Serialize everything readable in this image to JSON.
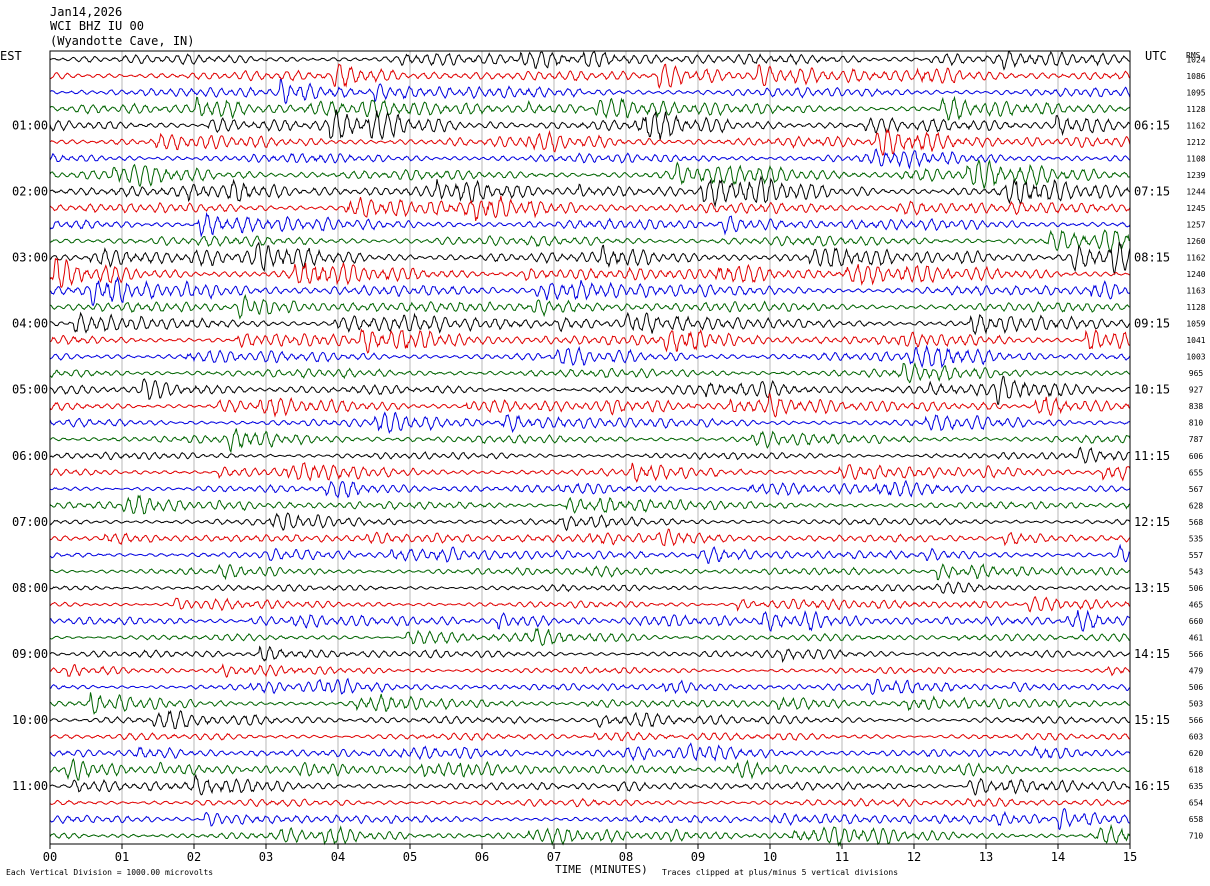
{
  "header": {
    "date": "Jan14,2026",
    "channel": "WCI BHZ IU 00",
    "location": "(Wyandotte Cave, IN)"
  },
  "left_timezone": "EST",
  "right_timezone": "UTC",
  "rms_label": "RMS",
  "footer": {
    "scale_note": "Each Vertical Division = 1000.00 microvolts",
    "clip_note": "Traces clipped at plus/minus 5 vertical divisions"
  },
  "chart_data": {
    "type": "line",
    "title": "",
    "xlabel": "TIME (MINUTES)",
    "ylabel": "",
    "xlim": [
      0,
      15
    ],
    "x_ticks": [
      "00",
      "01",
      "02",
      "03",
      "04",
      "05",
      "06",
      "07",
      "08",
      "09",
      "10",
      "11",
      "12",
      "13",
      "14",
      "15"
    ],
    "left_hour_labels": [
      "01:00",
      "02:00",
      "03:00",
      "04:00",
      "05:00",
      "06:00",
      "07:00",
      "08:00",
      "09:00",
      "10:00",
      "11:00"
    ],
    "right_hour_labels": [
      "06:15",
      "07:15",
      "08:15",
      "09:15",
      "10:15",
      "11:15",
      "12:15",
      "13:15",
      "14:15",
      "15:15",
      "16:15"
    ],
    "trace_colors": [
      "#000000",
      "#e00000",
      "#0000e0",
      "#006400"
    ],
    "trace_count": 48,
    "grid": true,
    "rms_values": [
      "1024",
      "1086",
      "1095",
      "1128",
      "1162",
      "1212",
      "1108",
      "1239",
      "1244",
      "1245",
      "1257",
      "1260",
      "1162",
      "1240",
      "1163",
      "1128",
      "1059",
      "1041",
      "1003",
      "965",
      "927",
      "838",
      "810",
      "787",
      "606",
      "655",
      "567",
      "628",
      "568",
      "535",
      "557",
      "543",
      "506",
      "465",
      "660",
      "461",
      "566",
      "479",
      "506",
      "503",
      "566",
      "603",
      "620",
      "618",
      "635",
      "654",
      "658",
      "710"
    ]
  }
}
